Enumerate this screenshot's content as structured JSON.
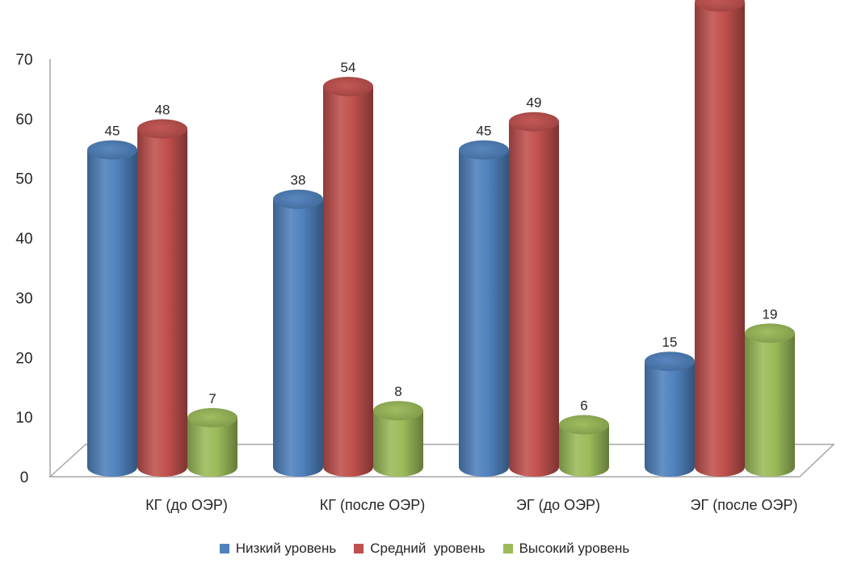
{
  "chart_data": {
    "type": "bar",
    "title": "",
    "xlabel": "",
    "ylabel": "",
    "ylim": [
      0,
      70
    ],
    "yticks": [
      0,
      10,
      20,
      30,
      40,
      50,
      60,
      70
    ],
    "categories": [
      "КГ (до ОЭР)",
      "КГ (после ОЭР)",
      "ЭГ (до ОЭР)",
      "ЭГ (после ОЭР)"
    ],
    "series": [
      {
        "name": "Низкий уровень",
        "values": [
          45,
          38,
          45,
          15
        ],
        "color": "#4F81BD"
      },
      {
        "name": "Средний  уровень",
        "values": [
          48,
          54,
          49,
          66
        ],
        "color": "#C0504D"
      },
      {
        "name": "Высокий уровень",
        "values": [
          7,
          8,
          6,
          19
        ],
        "color": "#9BBB59"
      }
    ],
    "data_labels": true,
    "grid": false,
    "legend_position": "bottom",
    "style": "3d-cylinder"
  }
}
